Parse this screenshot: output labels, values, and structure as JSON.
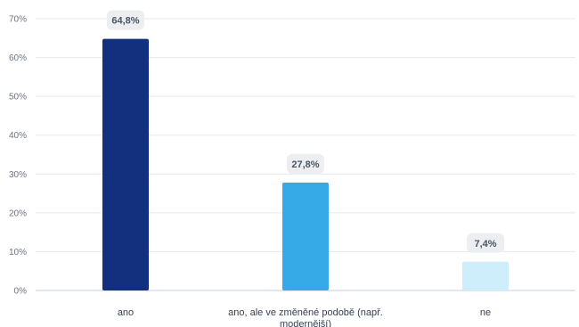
{
  "chart_data": {
    "type": "bar",
    "categories": [
      "ano",
      "ano, ale ve změněné podobě (např. modernější)",
      "ne"
    ],
    "category_lines": [
      [
        "ano"
      ],
      [
        "ano, ale ve změněné podobě (např.",
        "modernější)"
      ],
      [
        "ne"
      ]
    ],
    "values": [
      64.8,
      27.8,
      7.4
    ],
    "data_labels": [
      "64,8%",
      "27,8%",
      "7,4%"
    ],
    "colors": [
      "#13307f",
      "#36aae6",
      "#cdeefa"
    ],
    "ylim": [
      0,
      70
    ],
    "yticks": [
      0,
      10,
      20,
      30,
      40,
      50,
      60,
      70
    ],
    "ytick_labels": [
      "0%",
      "10%",
      "20%",
      "30%",
      "40%",
      "50%",
      "60%",
      "70%"
    ],
    "title": "",
    "xlabel": "",
    "ylabel": "",
    "grid": true,
    "legend": "none"
  }
}
